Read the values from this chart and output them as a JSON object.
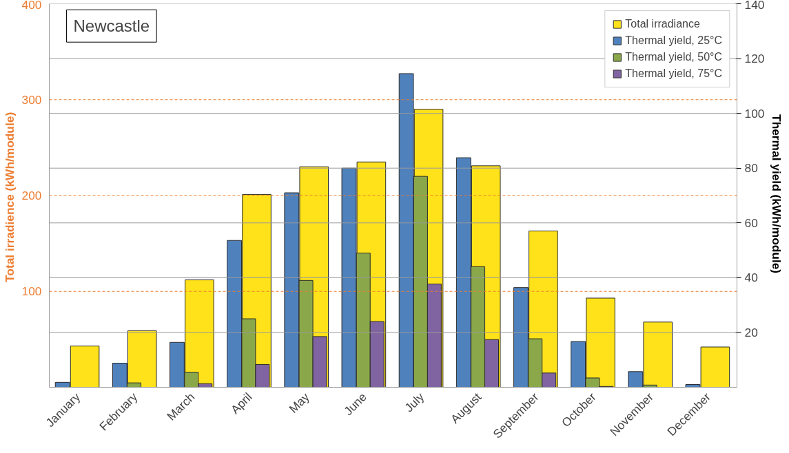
{
  "chart_data": {
    "type": "bar",
    "ylabel": "Total irradience  (kWh/module)",
    "y2label": "Thermal yield  (kWh/module)",
    "categories": [
      "January",
      "February",
      "March",
      "April",
      "May",
      "June",
      "July",
      "August",
      "September",
      "October",
      "November",
      "December"
    ],
    "series": [
      {
        "name": "Thermal yield, 25°C",
        "color": "#4f81bd",
        "axis": "y2",
        "values": [
          1.8,
          8.8,
          16.4,
          53.6,
          71,
          80,
          114.5,
          83.8,
          36.4,
          16.7,
          5.7,
          1
        ]
      },
      {
        "name": "Total irradiance",
        "color": "#ffe21a",
        "axis": "y",
        "values": [
          43,
          59,
          112,
          201,
          230,
          235,
          290,
          231,
          163,
          93,
          68,
          42
        ]
      },
      {
        "name": "Thermal yield, 50°C",
        "color": "#8aa84a",
        "axis": "y2",
        "values": [
          null,
          1.6,
          5.5,
          25,
          39,
          49,
          77,
          44,
          17.7,
          3.4,
          0.8,
          null
        ]
      },
      {
        "name": "Thermal yield, 75°C",
        "color": "#8064a2",
        "axis": "y2",
        "values": [
          null,
          null,
          1.3,
          8.3,
          18.5,
          24,
          37.7,
          17.4,
          5.2,
          0.3,
          null,
          null
        ]
      }
    ],
    "ylim": [
      0,
      400
    ],
    "yticks": [
      100,
      200,
      300,
      400
    ],
    "y2lim": [
      0,
      140
    ],
    "y2ticks": [
      20,
      40,
      60,
      80,
      100,
      120,
      140
    ],
    "grid": true,
    "legend": "top right",
    "annotations": [
      "Newcastle"
    ]
  }
}
